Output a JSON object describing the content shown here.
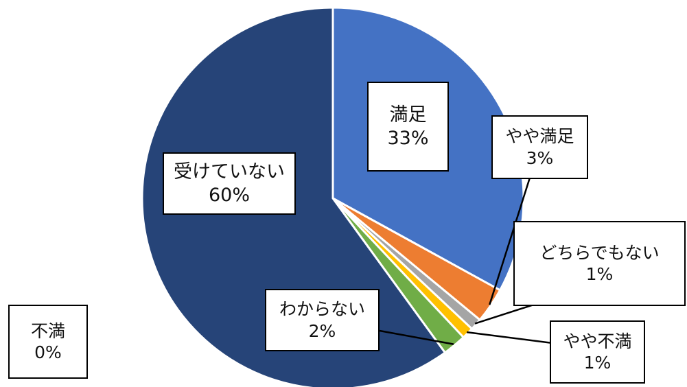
{
  "chart_data": {
    "type": "pie",
    "slices": [
      {
        "name": "満足",
        "value": 33,
        "label": "33%",
        "color": "#4472C4"
      },
      {
        "name": "やや満足",
        "value": 3,
        "label": "3%",
        "color": "#ED7D31"
      },
      {
        "name": "どちらでもない",
        "value": 1,
        "label": "1%",
        "color": "#A5A5A5"
      },
      {
        "name": "やや不満",
        "value": 1,
        "label": "1%",
        "color": "#FFC000"
      },
      {
        "name": "不満",
        "value": 0,
        "label": "0%",
        "color": "#5B9BD5"
      },
      {
        "name": "わからない",
        "value": 2,
        "label": "2%",
        "color": "#70AD47"
      },
      {
        "name": "受けていない",
        "value": 60,
        "label": "60%",
        "color": "#264478"
      }
    ],
    "start_angle": "12 o'clock",
    "direction": "clockwise",
    "legend": "none",
    "slice_border_color": "#FFFFFF"
  }
}
